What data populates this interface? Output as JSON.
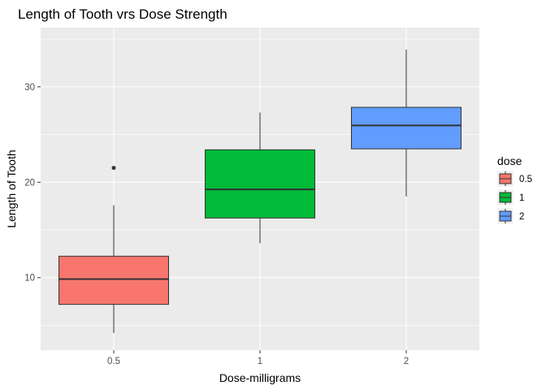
{
  "chart_data": {
    "type": "box",
    "title": "Length of Tooth vrs Dose Strength",
    "xlabel": "Dose-milligrams",
    "ylabel": "Length of Tooth",
    "categories": [
      "0.5",
      "1",
      "2"
    ],
    "yticks": [
      10,
      20,
      30
    ],
    "ylim": [
      2.4,
      36.2
    ],
    "grid": true,
    "legend": {
      "title": "dose",
      "position": "right",
      "entries": [
        "0.5",
        "1",
        "2"
      ]
    },
    "colors": [
      "#F8766D",
      "#00BA38",
      "#619CFF"
    ],
    "boxes": [
      {
        "category": "0.5",
        "min": 4.2,
        "q1": 7.2,
        "median": 9.85,
        "q3": 12.25,
        "max": 17.6,
        "outliers": [
          21.5
        ]
      },
      {
        "category": "1",
        "min": 13.6,
        "q1": 16.25,
        "median": 19.25,
        "q3": 23.4,
        "max": 27.3,
        "outliers": []
      },
      {
        "category": "2",
        "min": 18.5,
        "q1": 23.5,
        "median": 25.95,
        "q3": 27.85,
        "max": 33.9,
        "outliers": []
      }
    ]
  }
}
